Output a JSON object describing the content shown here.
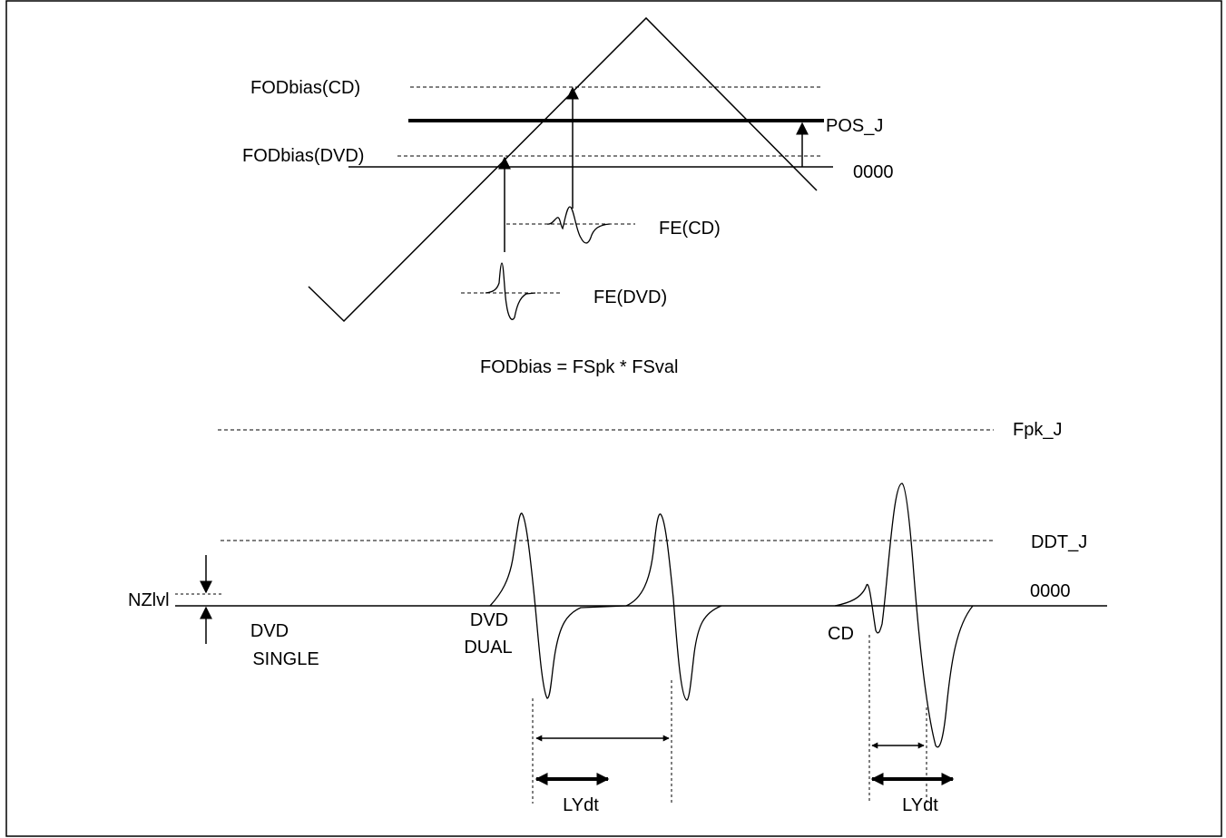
{
  "labels": {
    "fod_cd": "FODbias(CD)",
    "fod_dvd": "FODbias(DVD)",
    "pos_j": "POS_J",
    "zero_top": "0000",
    "fe_cd": "FE(CD)",
    "fe_dvd": "FE(DVD)",
    "formula": "FODbias = FSpk * FSval",
    "fpk_j": "Fpk_J",
    "ddt_j": "DDT_J",
    "zero_bottom": "0000",
    "nzlvl": "NZlvl",
    "dvd_single_1": "DVD",
    "dvd_single_2": "SINGLE",
    "dvd_dual_1": "DVD",
    "dvd_dual_2": "DUAL",
    "cd": "CD",
    "lydt_1": "LYdt",
    "lydt_2": "LYdt"
  }
}
